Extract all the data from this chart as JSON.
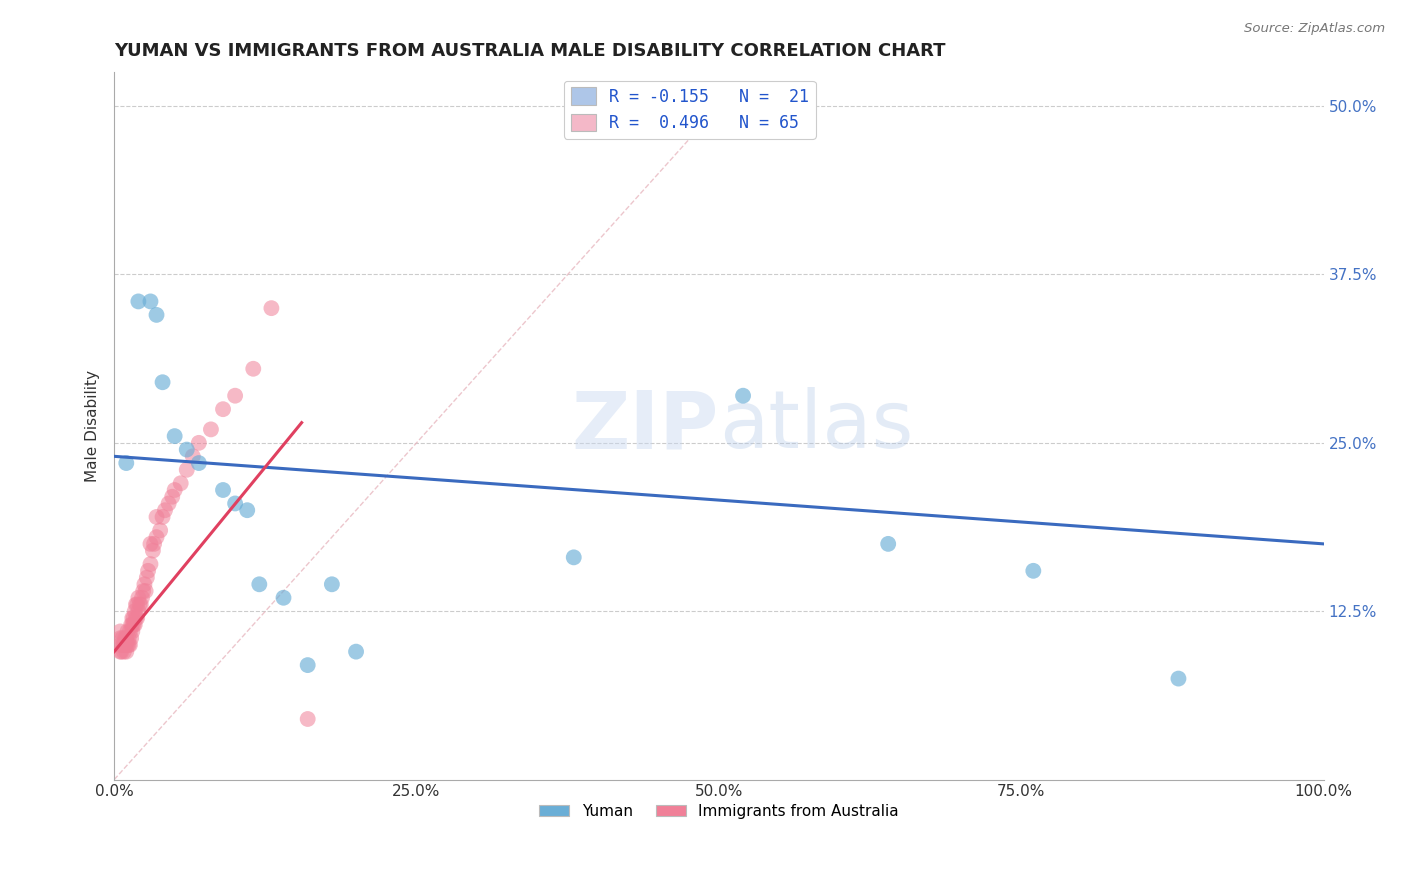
{
  "title": "YUMAN VS IMMIGRANTS FROM AUSTRALIA MALE DISABILITY CORRELATION CHART",
  "source": "Source: ZipAtlas.com",
  "ylabel": "Male Disability",
  "watermark": "ZIPatlas",
  "legend_top": [
    {
      "label": "R = -0.155   N =  21",
      "color": "#aec6e8"
    },
    {
      "label": "R =  0.496   N = 65",
      "color": "#f4b8c8"
    }
  ],
  "legend_bottom": [
    "Yuman",
    "Immigrants from Australia"
  ],
  "yuman_color": "#6aaed6",
  "immigrants_color": "#f08098",
  "yuman_trend_color": "#3a6abf",
  "immigrants_trend_color": "#e04060",
  "diagonal_color": "#e8b8c0",
  "background_color": "#ffffff",
  "xlim": [
    0.0,
    1.0
  ],
  "ylim": [
    0.0,
    0.525
  ],
  "yticks": [
    0.0,
    0.125,
    0.25,
    0.375,
    0.5
  ],
  "ytick_labels": [
    "",
    "12.5%",
    "25.0%",
    "37.5%",
    "50.0%"
  ],
  "xticks": [
    0.0,
    0.25,
    0.5,
    0.75,
    1.0
  ],
  "xtick_labels": [
    "0.0%",
    "25.0%",
    "50.0%",
    "75.0%",
    "100.0%"
  ],
  "yuman_x": [
    0.01,
    0.02,
    0.03,
    0.035,
    0.04,
    0.05,
    0.06,
    0.07,
    0.09,
    0.1,
    0.11,
    0.12,
    0.14,
    0.16,
    0.18,
    0.2,
    0.38,
    0.52,
    0.64,
    0.76,
    0.88
  ],
  "yuman_y": [
    0.235,
    0.355,
    0.355,
    0.345,
    0.295,
    0.255,
    0.245,
    0.235,
    0.215,
    0.205,
    0.2,
    0.145,
    0.135,
    0.085,
    0.145,
    0.095,
    0.165,
    0.285,
    0.175,
    0.155,
    0.075
  ],
  "immigrants_x": [
    0.005,
    0.005,
    0.005,
    0.005,
    0.006,
    0.007,
    0.007,
    0.008,
    0.008,
    0.009,
    0.009,
    0.01,
    0.01,
    0.01,
    0.011,
    0.011,
    0.012,
    0.012,
    0.013,
    0.013,
    0.014,
    0.014,
    0.015,
    0.015,
    0.015,
    0.016,
    0.016,
    0.017,
    0.017,
    0.018,
    0.018,
    0.019,
    0.019,
    0.02,
    0.02,
    0.021,
    0.022,
    0.023,
    0.024,
    0.025,
    0.026,
    0.027,
    0.028,
    0.03,
    0.03,
    0.032,
    0.033,
    0.035,
    0.035,
    0.038,
    0.04,
    0.042,
    0.045,
    0.048,
    0.05,
    0.055,
    0.06,
    0.065,
    0.07,
    0.08,
    0.09,
    0.1,
    0.115,
    0.13,
    0.16
  ],
  "immigrants_y": [
    0.095,
    0.1,
    0.105,
    0.11,
    0.095,
    0.1,
    0.105,
    0.095,
    0.1,
    0.1,
    0.105,
    0.095,
    0.1,
    0.105,
    0.1,
    0.11,
    0.1,
    0.105,
    0.1,
    0.11,
    0.105,
    0.115,
    0.11,
    0.115,
    0.12,
    0.115,
    0.12,
    0.115,
    0.125,
    0.12,
    0.13,
    0.12,
    0.13,
    0.125,
    0.135,
    0.13,
    0.13,
    0.135,
    0.14,
    0.145,
    0.14,
    0.15,
    0.155,
    0.16,
    0.175,
    0.17,
    0.175,
    0.18,
    0.195,
    0.185,
    0.195,
    0.2,
    0.205,
    0.21,
    0.215,
    0.22,
    0.23,
    0.24,
    0.25,
    0.26,
    0.275,
    0.285,
    0.305,
    0.35,
    0.045
  ],
  "yuman_trend_x": [
    0.0,
    1.0
  ],
  "yuman_trend_y": [
    0.24,
    0.175
  ],
  "immigrants_trend_x": [
    0.0,
    0.155
  ],
  "immigrants_trend_y": [
    0.095,
    0.265
  ]
}
